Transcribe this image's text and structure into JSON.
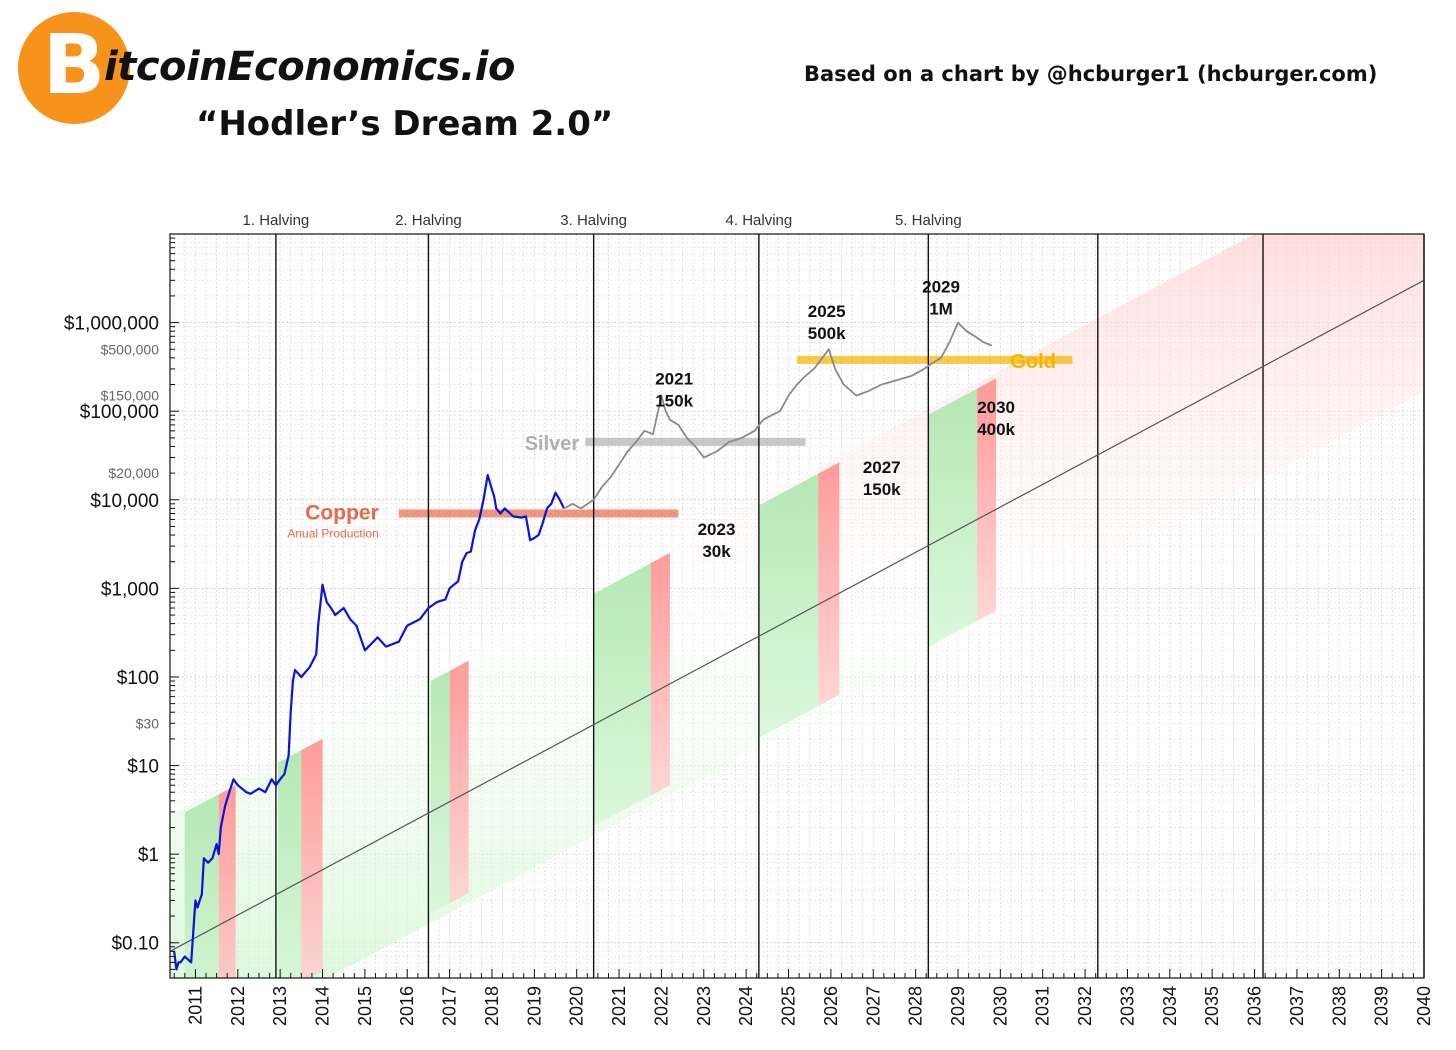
{
  "header": {
    "logo_glyph": "B",
    "brand": "itcoinEconomics.io",
    "title": "“Hodler’s Dream 2.0”",
    "attribution": "Based on a chart by @hcburger1 (hcburger.com)"
  },
  "chart_data": {
    "type": "line",
    "title": "“Hodler’s Dream 2.0”",
    "yscale": "log",
    "ylim": [
      0.04,
      10000000
    ],
    "xlim": [
      2010.4,
      2040.0
    ],
    "grid": true,
    "x_ticks": [
      "2011",
      "2012",
      "2013",
      "2014",
      "2015",
      "2016",
      "2017",
      "2018",
      "2019",
      "2020",
      "2021",
      "2022",
      "2023",
      "2024",
      "2025",
      "2026",
      "2027",
      "2028",
      "2029",
      "2030",
      "2031",
      "2032",
      "2033",
      "2034",
      "2035",
      "2036",
      "2037",
      "2038",
      "2039",
      "2040"
    ],
    "x_tick_positions": [
      2011,
      2012,
      2013,
      2014,
      2015,
      2016,
      2017,
      2018,
      2019,
      2020,
      2021,
      2022,
      2023,
      2024,
      2025,
      2026,
      2027,
      2028,
      2029,
      2030,
      2031,
      2032,
      2033,
      2034,
      2035,
      2036,
      2037,
      2038,
      2039,
      2040
    ],
    "y_ticks_major": [
      {
        "label": "$1,000,000",
        "value": 1000000
      },
      {
        "label": "$100,000",
        "value": 100000
      },
      {
        "label": "$10,000",
        "value": 10000
      },
      {
        "label": "$1,000",
        "value": 1000
      },
      {
        "label": "$100",
        "value": 100
      },
      {
        "label": "$10",
        "value": 10
      },
      {
        "label": "$1",
        "value": 1
      },
      {
        "label": "$0.10",
        "value": 0.1
      }
    ],
    "y_ticks_minor": [
      {
        "label": "$500,000",
        "value": 500000
      },
      {
        "label": "$150,000",
        "value": 150000
      },
      {
        "label": "$20,000",
        "value": 20000
      },
      {
        "label": "$30",
        "value": 30
      }
    ],
    "halvings": [
      {
        "label": "1. Halving",
        "x": 2012.9
      },
      {
        "label": "2. Halving",
        "x": 2016.5
      },
      {
        "label": "3. Halving",
        "x": 2020.4
      },
      {
        "label": "4. Halving",
        "x": 2024.3
      },
      {
        "label": "5. Halving",
        "x": 2028.3
      }
    ],
    "extra_vertical_lines": [
      2032.3,
      2036.2,
      2040.0
    ],
    "trend_line": {
      "from": [
        2010.4,
        0.08
      ],
      "to": [
        2040.0,
        3000000
      ]
    },
    "reference_levels": [
      {
        "label": "Copper",
        "sublabel": "Anual Production",
        "value": 7000,
        "x_from": 2015.8,
        "x_to": 2022.4,
        "color": "#e8694a"
      },
      {
        "label": "Silver",
        "value": 45000,
        "x_from": 2020.2,
        "x_to": 2025.4,
        "color": "#b0b0b0"
      },
      {
        "label": "Gold",
        "value": 380000,
        "x_from": 2025.2,
        "x_to": 2031.7,
        "color": "#f4b400"
      }
    ],
    "annotations": [
      {
        "year": "2021",
        "value": "150k",
        "x": 2022.3,
        "y": 200000
      },
      {
        "year": "2023",
        "value": "30k",
        "x": 2023.3,
        "y": 4000
      },
      {
        "year": "2025",
        "value": "500k",
        "x": 2025.9,
        "y": 1150000
      },
      {
        "year": "2027",
        "value": "150k",
        "x": 2027.2,
        "y": 20000
      },
      {
        "year": "2029",
        "value": "1M",
        "x": 2028.6,
        "y": 2200000
      },
      {
        "year": "2030",
        "value": "400k",
        "x": 2029.9,
        "y": 95000
      }
    ],
    "series": [
      {
        "style": "historical",
        "color": "#0a14d6",
        "x": [
          2010.5,
          2010.55,
          2010.6,
          2010.65,
          2010.75,
          2010.9,
          2011.0,
          2011.05,
          2011.1,
          2011.15,
          2011.2,
          2011.3,
          2011.4,
          2011.5,
          2011.55,
          2011.6,
          2011.7,
          2011.8,
          2011.9,
          2012.0,
          2012.1,
          2012.2,
          2012.3,
          2012.5,
          2012.65,
          2012.8,
          2012.9,
          2013.0,
          2013.1,
          2013.2,
          2013.25,
          2013.3,
          2013.35,
          2013.5,
          2013.7,
          2013.85,
          2013.9,
          2014.0,
          2014.1,
          2014.2,
          2014.3,
          2014.5,
          2014.65,
          2014.8,
          2015.0,
          2015.3,
          2015.5,
          2015.8,
          2016.0,
          2016.3,
          2016.5,
          2016.7,
          2016.9,
          2017.0,
          2017.1,
          2017.2,
          2017.3,
          2017.4,
          2017.5,
          2017.6,
          2017.7,
          2017.8,
          2017.9,
          2018.0,
          2018.05,
          2018.1,
          2018.2,
          2018.3,
          2018.5,
          2018.7,
          2018.8,
          2018.9,
          2019.0,
          2019.1,
          2019.2,
          2019.3,
          2019.4,
          2019.5,
          2019.6,
          2019.7
        ],
        "y": [
          0.08,
          0.05,
          0.06,
          0.06,
          0.07,
          0.06,
          0.3,
          0.25,
          0.3,
          0.35,
          0.9,
          0.8,
          0.9,
          1.3,
          1.0,
          2.0,
          3.5,
          5.0,
          7.0,
          6.0,
          5.5,
          5.0,
          4.8,
          5.5,
          5.0,
          7.0,
          6.0,
          7.0,
          8.0,
          13,
          40,
          90,
          120,
          100,
          130,
          180,
          400,
          1100,
          700,
          600,
          500,
          600,
          450,
          380,
          200,
          280,
          220,
          250,
          380,
          450,
          600,
          700,
          750,
          1000,
          1100,
          1200,
          2000,
          2500,
          2600,
          4500,
          6000,
          10000,
          19000,
          13000,
          11000,
          8000,
          7000,
          8000,
          6500,
          6300,
          6500,
          3500,
          3700,
          4000,
          5500,
          8000,
          9000,
          12000,
          10000,
          8000
        ]
      },
      {
        "style": "projection",
        "color": "#8a8a8a",
        "x": [
          2019.7,
          2019.9,
          2020.1,
          2020.4,
          2020.6,
          2020.8,
          2021.0,
          2021.2,
          2021.4,
          2021.6,
          2021.8,
          2022.0,
          2022.1,
          2022.2,
          2022.4,
          2022.6,
          2022.8,
          2023.0,
          2023.3,
          2023.6,
          2023.9,
          2024.2,
          2024.4,
          2024.6,
          2024.8,
          2025.0,
          2025.2,
          2025.4,
          2025.6,
          2025.8,
          2025.95,
          2026.1,
          2026.3,
          2026.6,
          2026.9,
          2027.2,
          2027.5,
          2027.9,
          2028.2,
          2028.4,
          2028.6,
          2028.8,
          2029.0,
          2029.2,
          2029.4,
          2029.6,
          2029.8
        ],
        "y": [
          8000,
          9000,
          8000,
          10000,
          14000,
          18000,
          25000,
          35000,
          45000,
          60000,
          55000,
          150000,
          100000,
          80000,
          70000,
          50000,
          40000,
          30000,
          35000,
          45000,
          50000,
          60000,
          80000,
          90000,
          100000,
          150000,
          200000,
          250000,
          300000,
          400000,
          500000,
          300000,
          200000,
          150000,
          170000,
          200000,
          220000,
          250000,
          300000,
          350000,
          400000,
          600000,
          1000000,
          800000,
          700000,
          600000,
          550000
        ]
      }
    ]
  }
}
